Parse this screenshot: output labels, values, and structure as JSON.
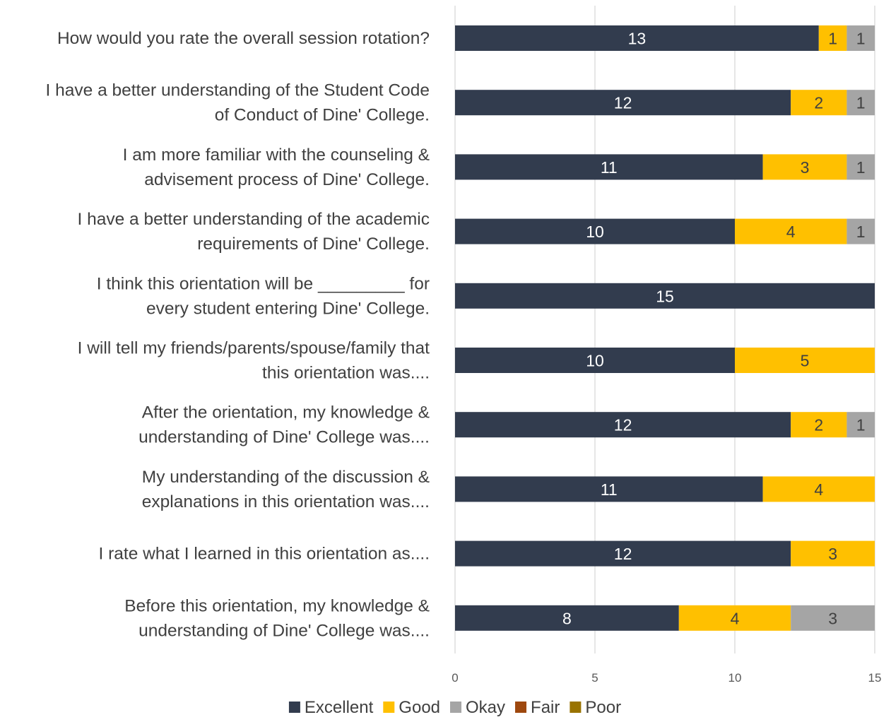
{
  "chart_data": {
    "type": "bar",
    "orientation": "horizontal",
    "stacked": true,
    "categories": [
      [
        "How would you rate the overall session rotation?"
      ],
      [
        "I have a better understanding of the Student Code",
        "of Conduct of Dine' College."
      ],
      [
        "I am more familiar with the counseling &",
        "advisement process of Dine' College."
      ],
      [
        "I have a better understanding of the academic",
        "requirements of Dine' College."
      ],
      [
        "I think this orientation will be _________  for",
        "every student entering Dine' College."
      ],
      [
        "I will tell my friends/parents/spouse/family that",
        "this orientation was...."
      ],
      [
        "After the orientation, my knowledge &",
        "understanding of Dine' College was...."
      ],
      [
        "My understanding of the discussion &",
        "explanations in this orientation was...."
      ],
      [
        "I rate what I learned in this orientation as...."
      ],
      [
        "Before this orientation, my knowledge &",
        "understanding of Dine' College was...."
      ]
    ],
    "series": [
      {
        "name": "Excellent",
        "color": "#323c4e",
        "label_color": "#ffffff",
        "values": [
          13,
          12,
          11,
          10,
          15,
          10,
          12,
          11,
          12,
          8
        ]
      },
      {
        "name": "Good",
        "color": "#ffc000",
        "label_color": "#404040",
        "values": [
          1,
          2,
          3,
          4,
          0,
          5,
          2,
          4,
          3,
          4
        ]
      },
      {
        "name": "Okay",
        "color": "#a5a5a5",
        "label_color": "#404040",
        "values": [
          1,
          1,
          1,
          1,
          0,
          0,
          1,
          0,
          0,
          3
        ]
      },
      {
        "name": "Fair",
        "color": "#9e480e",
        "label_color": "#ffffff",
        "values": [
          0,
          0,
          0,
          0,
          0,
          0,
          0,
          0,
          0,
          0
        ]
      },
      {
        "name": "Poor",
        "color": "#997300",
        "label_color": "#ffffff",
        "values": [
          0,
          0,
          0,
          0,
          0,
          0,
          0,
          0,
          0,
          0
        ]
      }
    ],
    "xlim": [
      0,
      15
    ],
    "xticks": [
      0,
      5,
      10,
      15
    ],
    "title": "",
    "xlabel": "",
    "ylabel": "",
    "grid": "vertical",
    "legend": "bottom",
    "data_labels": true
  }
}
